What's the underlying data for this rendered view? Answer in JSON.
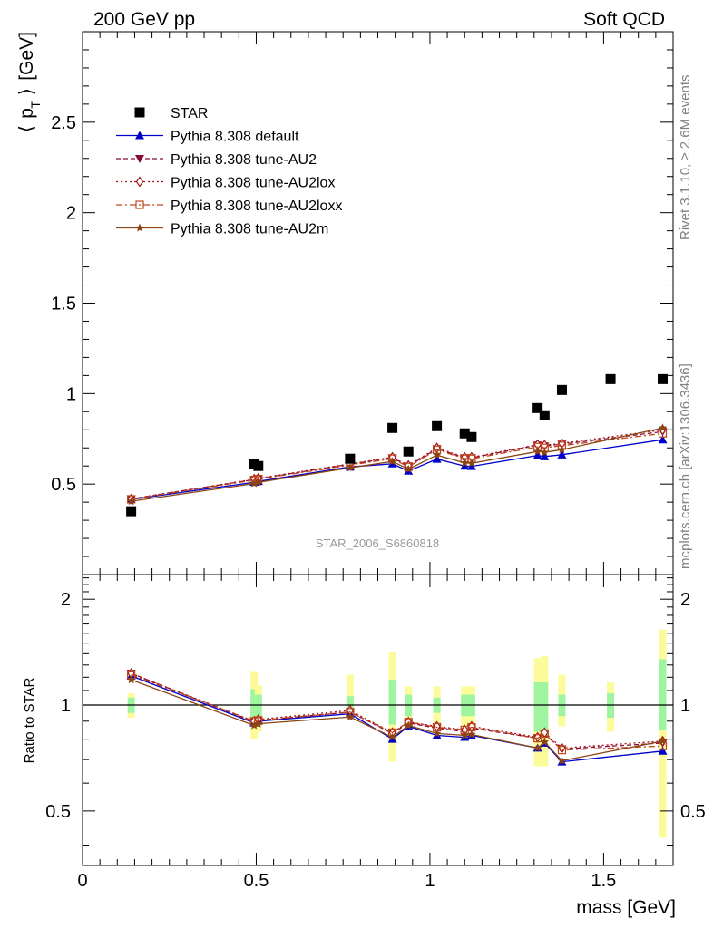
{
  "header": {
    "left": "200 GeV pp",
    "right": "Soft QCD"
  },
  "side_labels": {
    "rivet": "Rivet 3.1.10, ≥ 2.6M events",
    "mcplots": "mcplots.cern.ch [arXiv:1306.3436]"
  },
  "watermark": "STAR_2006_S6860818",
  "legend": [
    {
      "label": "STAR"
    },
    {
      "label": "Pythia 8.308 default"
    },
    {
      "label": "Pythia 8.308 tune-AU2"
    },
    {
      "label": "Pythia 8.308 tune-AU2lox"
    },
    {
      "label": "Pythia 8.308 tune-AU2loxx"
    },
    {
      "label": "Pythia 8.308 tune-AU2m"
    }
  ],
  "colors": {
    "data": "#000000",
    "default": "#0000cc",
    "au2": "#8b0a3a",
    "au2lox": "#a31518",
    "au2loxx": "#c0461a",
    "au2m": "#8b4513",
    "band_inner": "#9ff59f",
    "band_outer": "#fbfb9a"
  },
  "chart_data": [
    {
      "type": "scatter",
      "xlabel": "mass [GeV]",
      "ylabel": "⟨ p_T ⟩ [GeV]",
      "xlim": [
        0,
        1.7
      ],
      "ylim": [
        0,
        3.0
      ],
      "yticks": [
        "0.5",
        "1",
        "1.5",
        "2",
        "2.5"
      ],
      "xticks": [
        "0",
        "0.5",
        "1",
        "1.5"
      ],
      "data_series": {
        "name": "STAR",
        "x": [
          0.14,
          0.494,
          0.506,
          0.77,
          0.892,
          0.938,
          1.02,
          1.1,
          1.12,
          1.31,
          1.33,
          1.38,
          1.52,
          1.67
        ],
        "y": [
          0.35,
          0.61,
          0.6,
          0.64,
          0.81,
          0.68,
          0.82,
          0.78,
          0.76,
          0.92,
          0.88,
          1.02,
          1.08,
          1.08
        ]
      },
      "mc_x": [
        0.14,
        0.494,
        0.506,
        0.77,
        0.892,
        0.938,
        1.02,
        1.1,
        1.12,
        1.31,
        1.33,
        1.38,
        1.67
      ],
      "series": [
        {
          "name": "Pythia 8.308 default",
          "marker": "triangle-up",
          "dash": "",
          "values": [
            0.415,
            0.51,
            0.515,
            0.595,
            0.612,
            0.572,
            0.638,
            0.6,
            0.598,
            0.658,
            0.652,
            0.662,
            0.745
          ]
        },
        {
          "name": "Pythia 8.308 tune-AU2",
          "marker": "triangle-down",
          "dash": "5,3",
          "values": [
            0.418,
            0.525,
            0.53,
            0.61,
            0.645,
            0.6,
            0.695,
            0.645,
            0.645,
            0.715,
            0.71,
            0.72,
            0.79
          ]
        },
        {
          "name": "Pythia 8.308 tune-AU2lox",
          "marker": "diamond",
          "dash": "2,3",
          "values": [
            0.418,
            0.527,
            0.532,
            0.612,
            0.648,
            0.603,
            0.7,
            0.648,
            0.648,
            0.718,
            0.715,
            0.725,
            0.8
          ]
        },
        {
          "name": "Pythia 8.308 tune-AU2loxx",
          "marker": "square-open",
          "dash": "7,3,2,3",
          "values": [
            0.416,
            0.522,
            0.527,
            0.605,
            0.64,
            0.595,
            0.69,
            0.64,
            0.64,
            0.705,
            0.7,
            0.712,
            0.78
          ]
        },
        {
          "name": "Pythia 8.308 tune-AU2m",
          "marker": "star",
          "dash": "",
          "values": [
            0.405,
            0.503,
            0.51,
            0.59,
            0.625,
            0.582,
            0.66,
            0.617,
            0.615,
            0.68,
            0.675,
            0.69,
            0.81
          ]
        }
      ]
    },
    {
      "type": "line",
      "xlabel": "mass [GeV]",
      "ylabel": "Ratio to STAR",
      "xlim": [
        0,
        1.7
      ],
      "ylim": [
        0.35,
        2.35
      ],
      "yticks": [
        "0.5",
        "1",
        "2"
      ],
      "ratio_bands": {
        "x": [
          0.14,
          0.494,
          0.506,
          0.77,
          0.892,
          0.938,
          1.02,
          1.1,
          1.12,
          1.31,
          1.33,
          1.38,
          1.52,
          1.67
        ],
        "inner": [
          [
            0.95,
            1.05
          ],
          [
            0.91,
            1.11
          ],
          [
            0.93,
            1.07
          ],
          [
            0.96,
            1.06
          ],
          [
            0.88,
            1.18
          ],
          [
            0.93,
            1.07
          ],
          [
            0.95,
            1.05
          ],
          [
            0.93,
            1.07
          ],
          [
            0.93,
            1.07
          ],
          [
            0.84,
            1.16
          ],
          [
            0.84,
            1.16
          ],
          [
            0.93,
            1.07
          ],
          [
            0.92,
            1.08
          ],
          [
            0.85,
            1.35
          ]
        ],
        "outer": [
          [
            0.92,
            1.08
          ],
          [
            0.8,
            1.25
          ],
          [
            0.84,
            1.14
          ],
          [
            0.92,
            1.22
          ],
          [
            0.69,
            1.42
          ],
          [
            0.86,
            1.13
          ],
          [
            0.89,
            1.13
          ],
          [
            0.87,
            1.13
          ],
          [
            0.87,
            1.13
          ],
          [
            0.67,
            1.36
          ],
          [
            0.67,
            1.38
          ],
          [
            0.87,
            1.22
          ],
          [
            0.84,
            1.16
          ],
          [
            0.42,
            1.64
          ]
        ]
      },
      "ref_line": 1,
      "series": [
        {
          "name": "Pythia 8.308 default",
          "values": [
            1.21,
            0.89,
            0.9,
            0.945,
            0.8,
            0.87,
            0.82,
            0.81,
            0.82,
            0.755,
            0.78,
            0.69,
            0.74
          ]
        },
        {
          "name": "Pythia 8.308 tune-AU2",
          "values": [
            1.23,
            0.895,
            0.905,
            0.955,
            0.83,
            0.89,
            0.86,
            0.84,
            0.86,
            0.805,
            0.825,
            0.75,
            0.78
          ]
        },
        {
          "name": "Pythia 8.308 tune-AU2lox",
          "values": [
            1.23,
            0.9,
            0.91,
            0.965,
            0.835,
            0.895,
            0.87,
            0.85,
            0.87,
            0.81,
            0.835,
            0.755,
            0.79
          ]
        },
        {
          "name": "Pythia 8.308 tune-AU2loxx",
          "values": [
            1.22,
            0.9,
            0.905,
            0.955,
            0.835,
            0.895,
            0.865,
            0.85,
            0.865,
            0.805,
            0.83,
            0.745,
            0.765
          ]
        },
        {
          "name": "Pythia 8.308 tune-AU2m",
          "values": [
            1.18,
            0.875,
            0.885,
            0.925,
            0.81,
            0.875,
            0.83,
            0.82,
            0.825,
            0.755,
            0.785,
            0.695,
            0.79
          ]
        }
      ]
    }
  ]
}
